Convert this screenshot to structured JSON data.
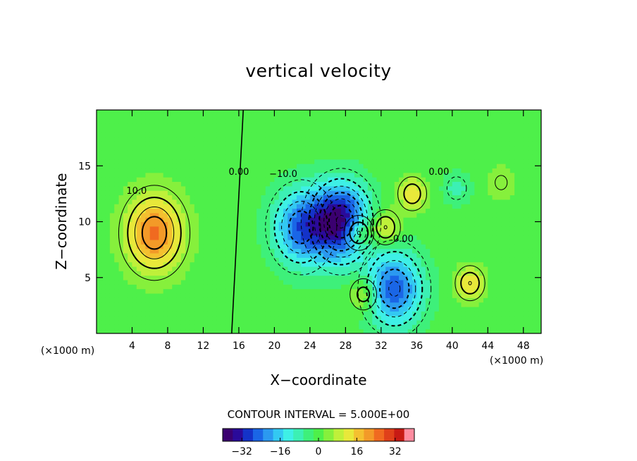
{
  "chart_data": {
    "type": "heatmap",
    "title": "vertical velocity",
    "xlabel": "X−coordinate",
    "ylabel": "Z−coordinate",
    "x_unit_left": "(×1000 m)",
    "x_unit_right": "(×1000 m)",
    "xlim": [
      0,
      50
    ],
    "ylim": [
      0,
      20
    ],
    "xticks": [
      4,
      8,
      12,
      16,
      20,
      24,
      28,
      32,
      36,
      40,
      44,
      48
    ],
    "yticks": [
      5,
      10,
      15
    ],
    "contour_interval_text": "CONTOUR INTERVAL = 5.000E+00",
    "contour_labels": [
      {
        "text": "10.0",
        "x": 4.5,
        "y": 12.5
      },
      {
        "text": "0.00",
        "x": 16.0,
        "y": 14.2
      },
      {
        "text": "−10.0",
        "x": 21.0,
        "y": 14.0
      },
      {
        "text": "0.00",
        "x": 38.5,
        "y": 14.2
      },
      {
        "text": "0.00",
        "x": 34.5,
        "y": 8.2
      }
    ],
    "colorbar": {
      "min": -40,
      "max": 40,
      "ticks": [
        -32,
        -16,
        0,
        16,
        32
      ],
      "tick_labels": [
        "−32",
        "−16",
        "0",
        "16",
        "32"
      ],
      "colors": [
        "#3b0070",
        "#2a0a9a",
        "#1433c8",
        "#1a66e6",
        "#2b99f0",
        "#33c9f2",
        "#3ef0e6",
        "#3cf0b4",
        "#3ef07a",
        "#4ef04a",
        "#86f03c",
        "#bff03a",
        "#e8e83a",
        "#f4c030",
        "#f39a28",
        "#f06a20",
        "#e0401a",
        "#c81a14",
        "#ff8ca0"
      ]
    },
    "features": [
      {
        "kind": "updraft",
        "x": 6.5,
        "y": 9.0,
        "peak": 24
      },
      {
        "kind": "downdraft",
        "x": 23.0,
        "y": 9.5,
        "peak": -24
      },
      {
        "kind": "downdraft",
        "x": 27.5,
        "y": 10.0,
        "peak": -36
      },
      {
        "kind": "updraft",
        "x": 29.5,
        "y": 9.0,
        "peak": 15
      },
      {
        "kind": "updraft",
        "x": 35.5,
        "y": 12.5,
        "peak": 14
      },
      {
        "kind": "updraft",
        "x": 32.5,
        "y": 9.5,
        "peak": 15
      },
      {
        "kind": "downdraft",
        "x": 33.5,
        "y": 4.0,
        "peak": -26
      },
      {
        "kind": "updraft",
        "x": 30.0,
        "y": 3.5,
        "peak": 12
      },
      {
        "kind": "updraft",
        "x": 42.0,
        "y": 4.5,
        "peak": 15
      },
      {
        "kind": "downdraft",
        "x": 40.5,
        "y": 13.0,
        "peak": -8
      },
      {
        "kind": "updraft",
        "x": 45.5,
        "y": 13.5,
        "peak": 6
      }
    ]
  }
}
